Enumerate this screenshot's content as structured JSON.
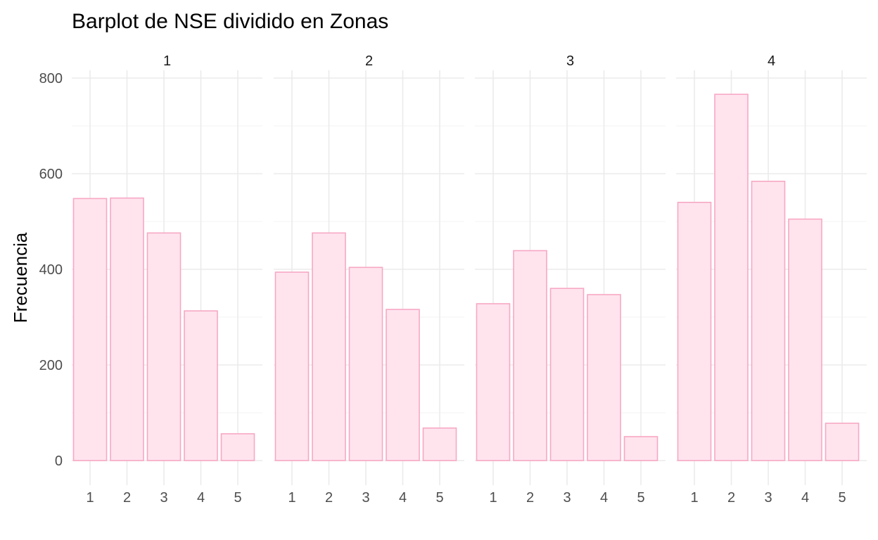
{
  "chart_data": {
    "type": "bar",
    "title": "Barplot de NSE dividido en Zonas",
    "xlabel": "",
    "ylabel": "Frecuencia",
    "ylim": [
      -40,
      830
    ],
    "yticks": [
      0,
      200,
      400,
      600,
      800
    ],
    "categories": [
      "1",
      "2",
      "3",
      "4",
      "5"
    ],
    "facets": [
      {
        "label": "1",
        "values": [
          548,
          549,
          476,
          313,
          56
        ]
      },
      {
        "label": "2",
        "values": [
          394,
          476,
          404,
          316,
          68
        ]
      },
      {
        "label": "3",
        "values": [
          328,
          439,
          360,
          347,
          50
        ]
      },
      {
        "label": "4",
        "values": [
          540,
          766,
          584,
          505,
          78
        ]
      }
    ],
    "bar_fill": "#ffe4ee",
    "bar_stroke": "#f7a8c4",
    "grid": true
  }
}
